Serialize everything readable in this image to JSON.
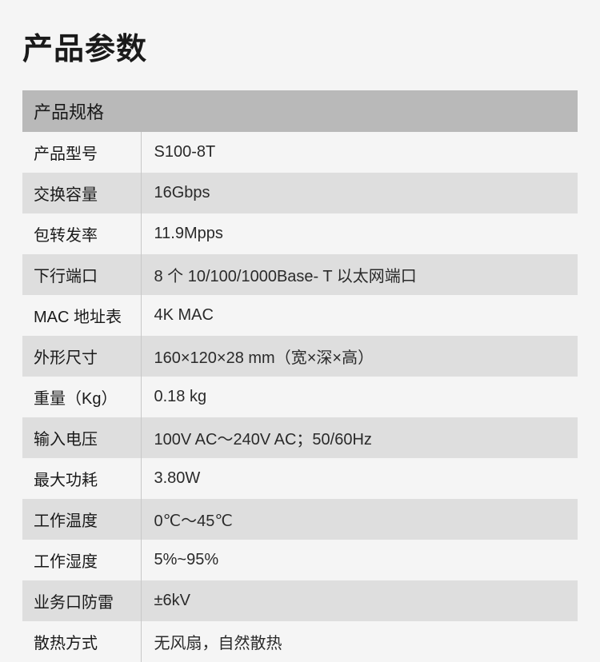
{
  "page_title": "产品参数",
  "table": {
    "header": "产品规格",
    "label_column_width": 148,
    "header_bg": "#b9b9b9",
    "row_odd_bg": "#f5f5f5",
    "row_even_bg": "#dedede",
    "border_color": "#c8c8c8",
    "background_color": "#f5f5f5",
    "title_fontsize": 38,
    "header_fontsize": 22,
    "cell_fontsize": 20,
    "text_color": "#1a1a1a",
    "rows": [
      {
        "label": "产品型号",
        "value": "S100-8T"
      },
      {
        "label": "交换容量",
        "value": "16Gbps"
      },
      {
        "label": "包转发率",
        "value": "11.9Mpps"
      },
      {
        "label": "下行端口",
        "value": "8 个 10/100/1000Base- T 以太网端口"
      },
      {
        "label": "MAC 地址表",
        "value": "4K MAC"
      },
      {
        "label": "外形尺寸",
        "value": "160×120×28 mm（宽×深×高）"
      },
      {
        "label": "重量（Kg）",
        "value": "0.18  kg"
      },
      {
        "label": "输入电压",
        "value": "100V AC～240V AC；50/60Hz"
      },
      {
        "label": "最大功耗",
        "value": "3.80W"
      },
      {
        "label": "工作温度",
        "value": "0℃～45℃"
      },
      {
        "label": "工作湿度",
        "value": "5%~95%"
      },
      {
        "label": "业务口防雷",
        "value": " ±6kV"
      },
      {
        "label": "散热方式",
        "value": "无风扇，自然散热"
      }
    ]
  }
}
